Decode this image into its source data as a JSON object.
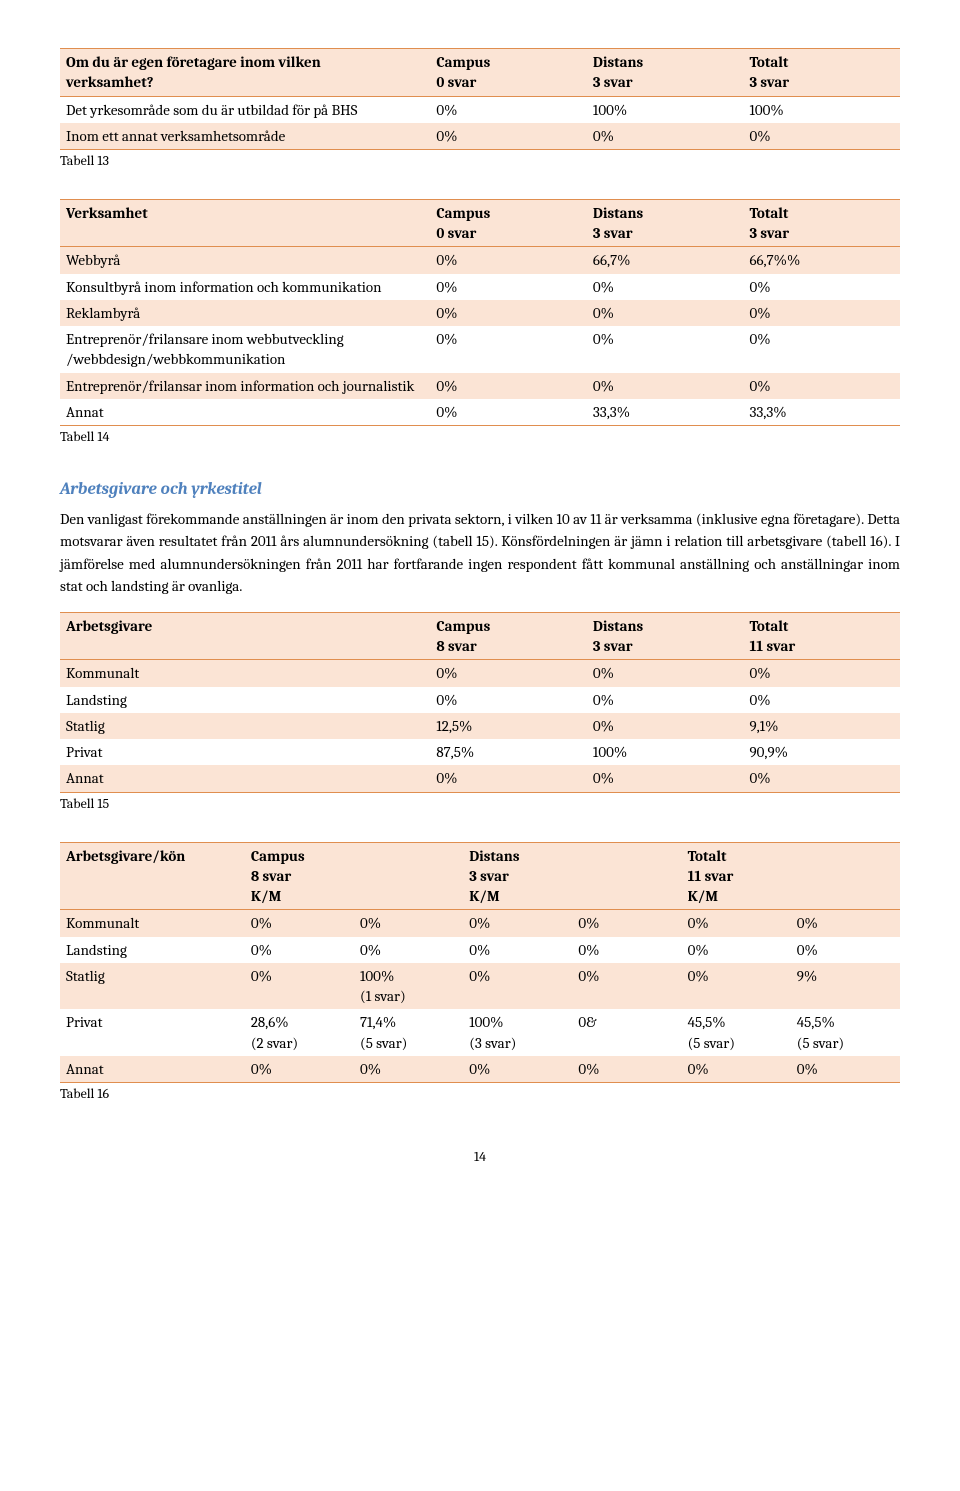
{
  "colors": {
    "band_bg": "#fbe4d5",
    "border": "#e08e4f",
    "heading": "#4f81bd"
  },
  "table13": {
    "header": {
      "label_l1": "Om du är egen företagare inom vilken",
      "label_l2": "verksamhet?",
      "c1_l1": "Campus",
      "c1_l2": "0 svar",
      "c2_l1": "Distans",
      "c2_l2": "3 svar",
      "c3_l1": "Totalt",
      "c3_l2": "3 svar"
    },
    "rows": [
      {
        "label": "Det yrkesområde som du är utbildad för på BHS",
        "c1": "0%",
        "c2": "100%",
        "c3": "100%",
        "band": false
      },
      {
        "label": "Inom ett annat verksamhetsområde",
        "c1": "0%",
        "c2": "0%",
        "c3": "0%",
        "band": true
      }
    ],
    "caption": "Tabell 13"
  },
  "table14": {
    "header": {
      "label": "Verksamhet",
      "c1_l1": "Campus",
      "c1_l2": "0 svar",
      "c2_l1": "Distans",
      "c2_l2": "3 svar",
      "c3_l1": "Totalt",
      "c3_l2": "3 svar"
    },
    "rows": [
      {
        "label": "Webbyrå",
        "c1": "0%",
        "c2": "66,7%",
        "c3": "66,7%%",
        "band": true
      },
      {
        "label": "Konsultbyrå inom information och kommunikation",
        "c1": "0%",
        "c2": "0%",
        "c3": "0%",
        "band": false
      },
      {
        "label": "Reklambyrå",
        "c1": "0%",
        "c2": "0%",
        "c3": "0%",
        "band": true
      },
      {
        "label": "Entreprenör/frilansare inom webbutveckling /webbdesign/webbkommunikation",
        "c1": "0%",
        "c2": "0%",
        "c3": "0%",
        "band": false
      },
      {
        "label": "Entreprenör/frilansar inom information och journalistik",
        "c1": "0%",
        "c2": "0%",
        "c3": "0%",
        "band": true
      },
      {
        "label": "Annat",
        "c1": "0%",
        "c2": "33,3%",
        "c3": "33,3%",
        "band": false
      }
    ],
    "caption": "Tabell 14"
  },
  "section": {
    "title": "Arbetsgivare och yrkestitel",
    "paragraph": "Den vanligast förekommande anställningen är inom den privata sektorn, i vilken 10 av 11 är verksamma (inklusive egna företagare). Detta motsvarar även resultatet från 2011 års alumnundersökning (tabell 15). Könsfördelningen är jämn i relation till arbetsgivare (tabell 16). I jämförelse med alumnundersökningen från 2011 har fortfarande ingen respondent fått kommunal anställning och anställningar inom stat och landsting är ovanliga."
  },
  "table15": {
    "header": {
      "label": "Arbetsgivare",
      "c1_l1": "Campus",
      "c1_l2": "8 svar",
      "c2_l1": "Distans",
      "c2_l2": "3 svar",
      "c3_l1": "Totalt",
      "c3_l2": "11 svar"
    },
    "rows": [
      {
        "label": "Kommunalt",
        "c1": "0%",
        "c2": "0%",
        "c3": "0%",
        "band": true
      },
      {
        "label": "Landsting",
        "c1": "0%",
        "c2": "0%",
        "c3": "0%",
        "band": false
      },
      {
        "label": "Statlig",
        "c1": "12,5%",
        "c2": "0%",
        "c3": "9,1%",
        "band": true
      },
      {
        "label": "Privat",
        "c1": "87,5%",
        "c2": "100%",
        "c3": "90,9%",
        "band": false
      },
      {
        "label": "Annat",
        "c1": "0%",
        "c2": "0%",
        "c3": "0%",
        "band": true
      }
    ],
    "caption": "Tabell 15"
  },
  "table16": {
    "header": {
      "label": "Arbetsgivare/kön",
      "g1_l1": "Campus",
      "g1_l2": "8 svar",
      "g1_l3": "K/M",
      "g2_l1": "Distans",
      "g2_l2": "3 svar",
      "g2_l3": "K/M",
      "g3_l1": "Totalt",
      "g3_l2": "11 svar",
      "g3_l3": "K/M"
    },
    "rows": [
      {
        "label": "Kommunalt",
        "c": [
          "0%",
          "0%",
          "0%",
          "0%",
          "0%",
          "0%"
        ],
        "band": true
      },
      {
        "label": "Landsting",
        "c": [
          "0%",
          "0%",
          "0%",
          "0%",
          "0%",
          "0%"
        ],
        "band": false
      },
      {
        "label": "Statlig",
        "c": [
          "0%",
          "100%\n(1 svar)",
          "0%",
          "0%",
          "0%",
          "9%"
        ],
        "band": true
      },
      {
        "label": "Privat",
        "c": [
          "28,6%\n(2 svar)",
          "71,4%\n(5 svar)",
          "100%\n(3 svar)",
          "0&",
          "45,5%\n(5 svar)",
          "45,5%\n(5 svar)"
        ],
        "band": false
      },
      {
        "label": "Annat",
        "c": [
          "0%",
          "0%",
          "0%",
          "0%",
          "0%",
          "0%"
        ],
        "band": true
      }
    ],
    "caption": "Tabell 16"
  },
  "page_number": "14"
}
